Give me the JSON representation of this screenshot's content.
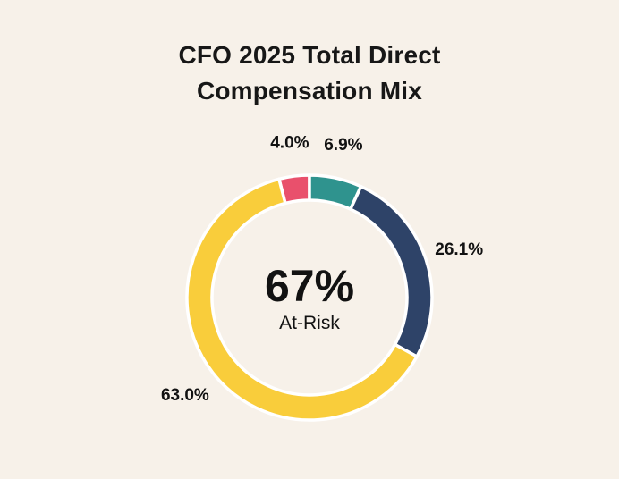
{
  "page": {
    "background_color": "#F7F1E9"
  },
  "chart_data": {
    "type": "pie",
    "donut": true,
    "title": "CFO 2025 Total Direct Compensation Mix",
    "center_value": "67%",
    "center_label": "At-Risk",
    "start_angle_deg": -14.4,
    "clockwise": true,
    "labels": [
      "4.0%",
      "6.9%",
      "26.1%",
      "63.0%"
    ],
    "values": [
      4.0,
      6.9,
      26.1,
      63.0
    ],
    "colors": [
      "#E9506C",
      "#2F938E",
      "#2E4368",
      "#F9CD3B"
    ],
    "separator_color": "#FFFFFF",
    "text_color": "#121212",
    "legend_position": "none"
  }
}
